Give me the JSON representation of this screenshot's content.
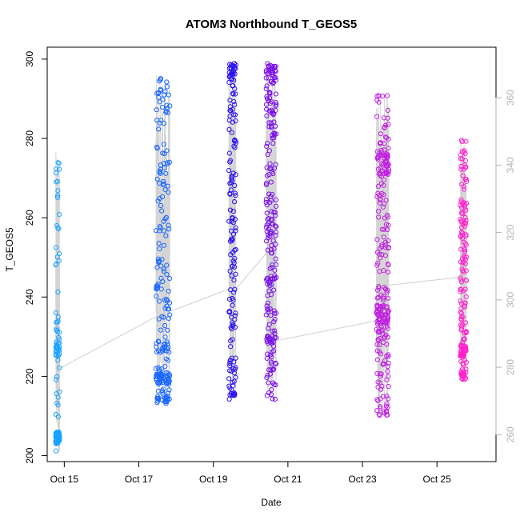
{
  "chart_data": {
    "type": "scatter",
    "title": "ATOM3 Northbound T_GEOS5",
    "xlabel": "Date",
    "ylabel": "T_GEOS5",
    "ylim": [
      198.5,
      303
    ],
    "y2lim": [
      252,
      375
    ],
    "xlim": [
      "2016-10-14 13:00",
      "2016-10-26 14:00"
    ],
    "x_ticks": [
      {
        "date": "2016-10-15",
        "label": "Oct 15"
      },
      {
        "date": "2016-10-17",
        "label": "Oct 17"
      },
      {
        "date": "2016-10-19",
        "label": "Oct 19"
      },
      {
        "date": "2016-10-21",
        "label": "Oct 21"
      },
      {
        "date": "2016-10-23",
        "label": "Oct 23"
      },
      {
        "date": "2016-10-25",
        "label": "Oct 25"
      }
    ],
    "y_ticks": [
      200,
      220,
      240,
      260,
      280,
      300
    ],
    "y2_ticks": [
      260,
      280,
      300,
      320,
      340,
      360
    ],
    "grid": false,
    "marker": "open-circle",
    "color_scheme": [
      "#00a8ff",
      "#0055ff",
      "#2200ff",
      "#7700ff",
      "#dd00ff",
      "#ff33cc"
    ],
    "flights": [
      {
        "start": "2016-10-14 18:30",
        "end": "2016-10-14 21:00",
        "y_min": 200,
        "y_max": 277,
        "color": "#1aa3ff",
        "n": 150,
        "clusters": [
          [
            203,
            206,
            0.55
          ],
          [
            224,
            230,
            0.12
          ]
        ]
      },
      {
        "start": "2016-10-17 11:00",
        "end": "2016-10-17 20:00",
        "y_min": 213,
        "y_max": 296,
        "color": "#1a66ff",
        "n": 220,
        "clusters": [
          [
            218,
            221,
            0.18
          ],
          [
            226,
            229,
            0.1
          ],
          [
            213,
            215,
            0.04
          ]
        ]
      },
      {
        "start": "2016-10-19 10:00",
        "end": "2016-10-19 14:30",
        "y_min": 214,
        "y_max": 299,
        "color": "#2a10ee",
        "n": 160,
        "clusters": [
          [
            296,
            299,
            0.1
          ],
          [
            215,
            216,
            0.03
          ]
        ]
      },
      {
        "start": "2016-10-20 10:00",
        "end": "2016-10-20 16:30",
        "y_min": 214,
        "y_max": 299,
        "color": "#7a10e8",
        "n": 230,
        "clusters": [
          [
            296,
            299,
            0.1
          ],
          [
            242,
            245,
            0.05
          ],
          [
            228,
            230,
            0.04
          ]
        ]
      },
      {
        "start": "2016-10-23 09:00",
        "end": "2016-10-23 17:00",
        "y_min": 210,
        "y_max": 291,
        "color": "#c020e0",
        "n": 260,
        "clusters": [
          [
            233,
            238,
            0.15
          ],
          [
            270,
            276,
            0.15
          ],
          [
            210,
            212,
            0.03
          ]
        ]
      },
      {
        "start": "2016-10-25 15:00",
        "end": "2016-10-25 19:00",
        "y_min": 219,
        "y_max": 280,
        "color": "#ff22cc",
        "n": 180,
        "clusters": [
          [
            225,
            228,
            0.16
          ],
          [
            219,
            222,
            0.06
          ]
        ]
      }
    ],
    "connector_line": {
      "color": "#cfcfcf",
      "points": [
        [
          "2016-10-14 21:00",
          222
        ],
        [
          "2016-10-17 11:00",
          235
        ],
        [
          "2016-10-19 10:00",
          242
        ],
        [
          "2016-10-19 14:30",
          242
        ],
        [
          "2016-10-20 10:00",
          251
        ],
        [
          "2016-10-20 16:30",
          229
        ],
        [
          "2016-10-23 09:00",
          234
        ],
        [
          "2016-10-23 17:00",
          243
        ],
        [
          "2016-10-25 15:00",
          245
        ]
      ]
    }
  }
}
